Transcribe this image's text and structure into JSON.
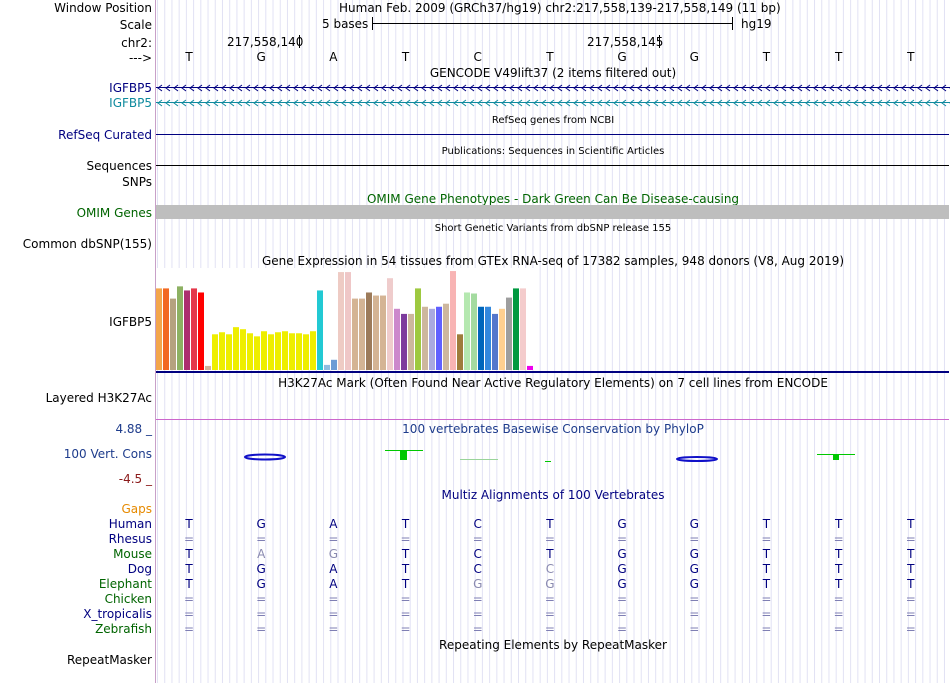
{
  "header": {
    "window_label": "Window Position",
    "window_value": "Human Feb. 2009 (GRCh37/hg19)   chr2:217,558,139-217,558,149 (11 bp)",
    "scale_label": "Scale",
    "scale_value": "5 bases",
    "scale_db": "hg19",
    "chrom_label": "chr2:",
    "pos1": "217,558,140",
    "pos2": "217,558,145",
    "strand_label": "--->"
  },
  "bases": [
    "T",
    "G",
    "A",
    "T",
    "C",
    "T",
    "G",
    "G",
    "T",
    "T",
    "T"
  ],
  "tracks": {
    "gencode_title": "GENCODE V49lift37 (2 items filtered out)",
    "igfbp5_a": "IGFBP5",
    "igfbp5_b": "IGFBP5",
    "refseq_label": "RefSeq Curated",
    "refseq_title": "RefSeq genes from NCBI",
    "sequences_label": "Sequences",
    "pubs_title": "Publications: Sequences in Scientific Articles",
    "snps_label": "SNPs",
    "omim_title": "OMIM Gene Phenotypes - Dark Green Can Be Disease-causing",
    "omim_label": "OMIM Genes",
    "dbsnp_title": "Short Genetic Variants from dbSNP release 155",
    "dbsnp_label": "Common dbSNP(155)",
    "gtex_title": "Gene Expression in 54 tissues from GTEx RNA-seq of 17382 samples, 948 donors (V8, Aug 2019)",
    "gtex_label": "IGFBP5",
    "h3k_title": "H3K27Ac Mark (Often Found Near Active Regulatory Elements) on 7 cell lines from ENCODE",
    "h3k_label": "Layered H3K27Ac",
    "phylo_max": "4.88 _",
    "phylo_title": "100 vertebrates Basewise Conservation by PhyloP",
    "phylo_label": "100 Vert. Cons",
    "phylo_min": "-4.5 _",
    "multiz_title": "Multiz Alignments of 100 Vertebrates",
    "repeat_title": "Repeating Elements by RepeatMasker",
    "repeat_label": "RepeatMasker"
  },
  "gtex_values": [
    0.8,
    0.8,
    0.7,
    0.82,
    0.78,
    0.8,
    0.76,
    0.04,
    0.35,
    0.37,
    0.35,
    0.42,
    0.4,
    0.36,
    0.33,
    0.38,
    0.35,
    0.37,
    0.38,
    0.36,
    0.36,
    0.35,
    0.38,
    0.78,
    0.05,
    0.1,
    0.96,
    0.96,
    0.7,
    0.7,
    0.76,
    0.73,
    0.73,
    0.9,
    0.6,
    0.55,
    0.55,
    0.8,
    0.62,
    0.6,
    0.62,
    0.65,
    0.97,
    0.35,
    0.76,
    0.75,
    0.62,
    0.62,
    0.55,
    0.6,
    0.71,
    0.8,
    0.8,
    0.04
  ],
  "gtex_colors": [
    "#f3a54b",
    "#f26822",
    "#b5a27f",
    "#8db163",
    "#ac2e6f",
    "#e4374a",
    "#ff0000",
    "#d1b49b",
    "#eeee00",
    "#eeee00",
    "#eeee00",
    "#eeee00",
    "#eeee00",
    "#eeee00",
    "#eeee00",
    "#eeee00",
    "#eeee00",
    "#eeee00",
    "#eeee00",
    "#eeee00",
    "#eeee00",
    "#eeee00",
    "#eeee00",
    "#22c9d3",
    "#8fbde0",
    "#6c9bd5",
    "#eecbc4",
    "#efc7c7",
    "#d4b494",
    "#d4b494",
    "#9d7b5a",
    "#d4b494",
    "#d4b494",
    "#efcccc",
    "#cc88cc",
    "#7d3b9d",
    "#cdb79e",
    "#9ec940",
    "#cdb79e",
    "#a9a9e0",
    "#6060ff",
    "#cdb79e",
    "#f8b4b4",
    "#9e7c3b",
    "#b5e8b0",
    "#a4dba0",
    "#0066bb",
    "#3388dd",
    "#5577cc",
    "#ffd090",
    "#9e9e9e",
    "#009940",
    "#f4cccc",
    "#ee00ee"
  ],
  "species": [
    {
      "name": "Gaps",
      "color": "#e68a00",
      "row": []
    },
    {
      "name": "Human",
      "color": "#000080",
      "row": [
        "T",
        "G",
        "A",
        "T",
        "C",
        "T",
        "G",
        "G",
        "T",
        "T",
        "T"
      ]
    },
    {
      "name": "Rhesus",
      "color": "#000080",
      "row": [
        "=",
        "=",
        "=",
        "=",
        "=",
        "=",
        "=",
        "=",
        "=",
        "=",
        "="
      ]
    },
    {
      "name": "Mouse",
      "color": "#006400",
      "row": [
        "T",
        "A",
        "G",
        "T",
        "C",
        "T",
        "G",
        "G",
        "T",
        "T",
        "T"
      ]
    },
    {
      "name": "Dog",
      "color": "#000080",
      "row": [
        "T",
        "G",
        "A",
        "T",
        "C",
        "C",
        "G",
        "G",
        "T",
        "T",
        "T"
      ]
    },
    {
      "name": "Elephant",
      "color": "#006400",
      "row": [
        "T",
        "G",
        "A",
        "T",
        "G",
        "G",
        "G",
        "G",
        "T",
        "T",
        "T"
      ]
    },
    {
      "name": "Chicken",
      "color": "#006400",
      "row": [
        "=",
        "=",
        "=",
        "=",
        "=",
        "=",
        "=",
        "=",
        "=",
        "=",
        "="
      ]
    },
    {
      "name": "X_tropicalis",
      "color": "#000080",
      "row": [
        "=",
        "=",
        "=",
        "=",
        "=",
        "=",
        "=",
        "=",
        "=",
        "=",
        "="
      ]
    },
    {
      "name": "Zebrafish",
      "color": "#006400",
      "row": [
        "=",
        "=",
        "=",
        "=",
        "=",
        "=",
        "=",
        "=",
        "=",
        "=",
        "="
      ]
    }
  ],
  "colors": {
    "navy": "#000080",
    "teal": "#0e8a9e",
    "green": "#006400",
    "omim_bar": "#bebebe",
    "phylo_blue": "#1010c8",
    "phylo_green": "#00c800",
    "h3k_line": "#cc66cc"
  }
}
